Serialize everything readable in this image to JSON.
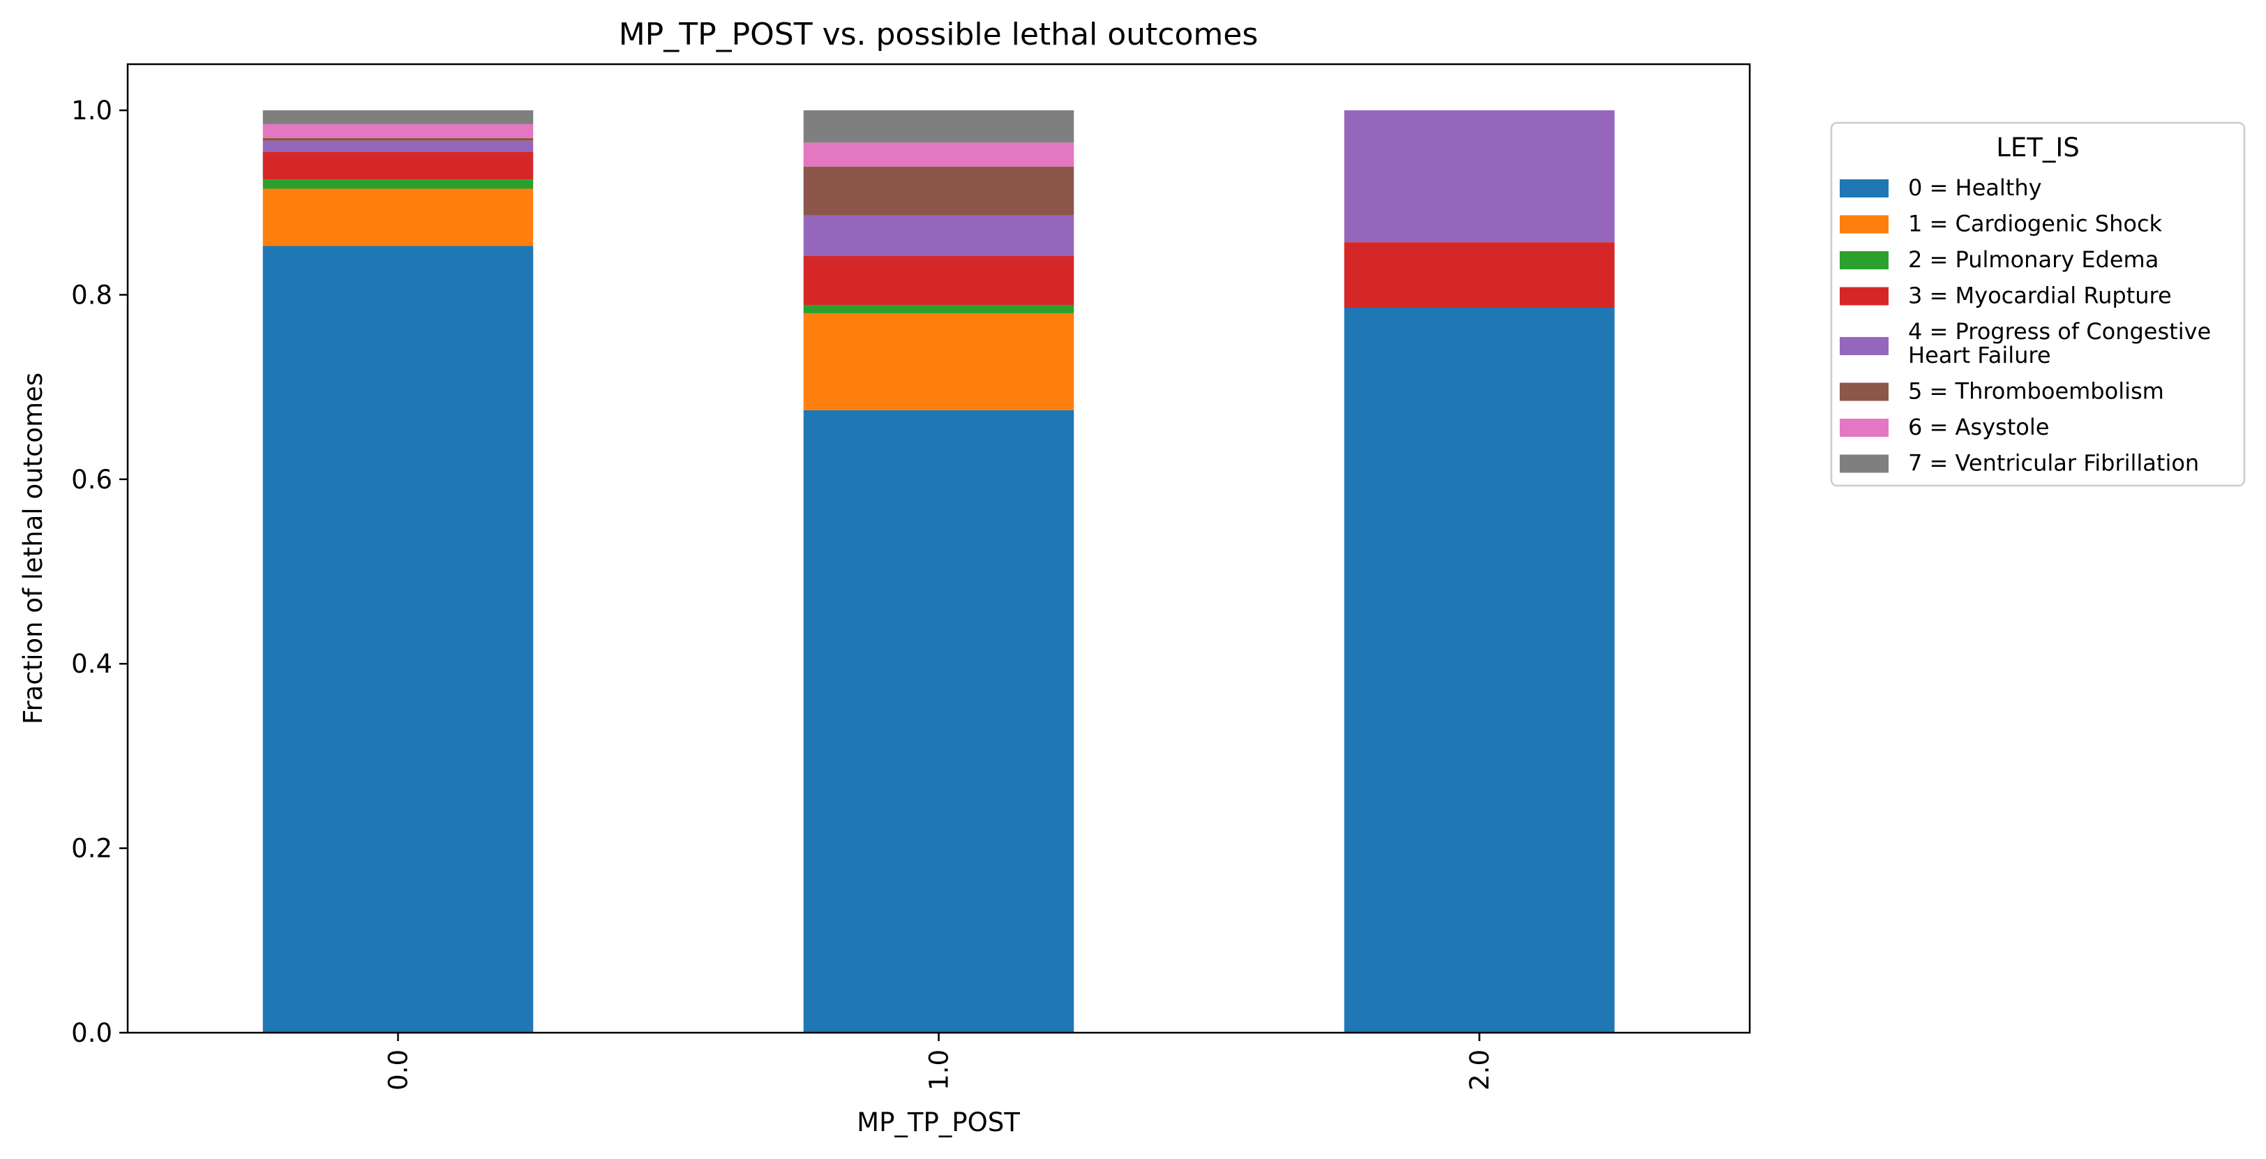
{
  "chart_data": {
    "type": "bar",
    "stacked": true,
    "title": "MP_TP_POST vs. possible lethal outcomes",
    "xlabel": "MP_TP_POST",
    "ylabel": "Fraction of lethal outcomes",
    "ylim": [
      0,
      1.05
    ],
    "yticks": [
      0.0,
      0.2,
      0.4,
      0.6,
      0.8,
      1.0
    ],
    "ytick_labels": [
      "0.0",
      "0.2",
      "0.4",
      "0.6",
      "0.8",
      "1.0"
    ],
    "categories": [
      "0.0",
      "1.0",
      "2.0"
    ],
    "grid": false,
    "legend": {
      "title": "LET_IS",
      "placement": "outside-right-top"
    },
    "series": [
      {
        "name": "0 = Healthy",
        "legend_lines": [
          "0 = Healthy"
        ],
        "color": "#1f77b4",
        "values": [
          0.853,
          0.675,
          0.786
        ]
      },
      {
        "name": "1 = Cardiogenic Shock",
        "legend_lines": [
          "1 = Cardiogenic Shock"
        ],
        "color": "#ff7f0e",
        "values": [
          0.062,
          0.105,
          0.0
        ]
      },
      {
        "name": "2 = Pulmonary Edema",
        "legend_lines": [
          "2 = Pulmonary Edema"
        ],
        "color": "#2ca02c",
        "values": [
          0.01,
          0.009,
          0.0
        ]
      },
      {
        "name": "3 = Myocardial Rupture",
        "legend_lines": [
          "3 = Myocardial Rupture"
        ],
        "color": "#d62728",
        "values": [
          0.03,
          0.053,
          0.071
        ]
      },
      {
        "name": "4 = Progress of Congestive Heart Failure",
        "legend_lines": [
          "4 = Progress of Congestive",
          "Heart Failure"
        ],
        "color": "#9467bd",
        "values": [
          0.012,
          0.044,
          0.143
        ]
      },
      {
        "name": "5 = Thromboembolism",
        "legend_lines": [
          "5 = Thromboembolism"
        ],
        "color": "#8c564b",
        "values": [
          0.003,
          0.053,
          0.0
        ]
      },
      {
        "name": "6 = Asystole",
        "legend_lines": [
          "6 = Asystole"
        ],
        "color": "#e377c2",
        "values": [
          0.015,
          0.026,
          0.0
        ]
      },
      {
        "name": "7 = Ventricular Fibrillation",
        "legend_lines": [
          "7 = Ventricular Fibrillation"
        ],
        "color": "#7f7f7f",
        "values": [
          0.015,
          0.035,
          0.0
        ]
      }
    ]
  }
}
